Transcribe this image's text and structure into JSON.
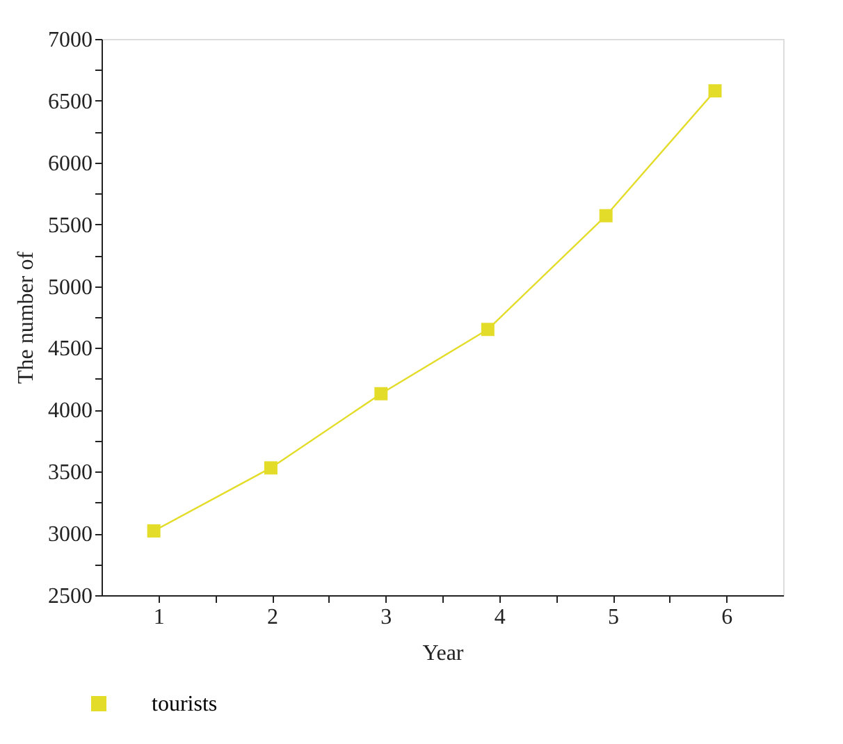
{
  "chart_data": {
    "type": "line",
    "xlabel": "Year",
    "ylabel": "The number of",
    "x": [
      0.96,
      1.99,
      2.96,
      3.9,
      4.94,
      5.9
    ],
    "series": [
      {
        "name": "tourists",
        "color": "#e3dc28",
        "values": [
          3020,
          3530,
          4130,
          4650,
          5570,
          6580
        ]
      }
    ],
    "xlim": [
      0.5,
      6.5
    ],
    "xticks": [
      1,
      {
        "value": 1.5,
        "label": null
      },
      2,
      {
        "value": 2.5,
        "label": null
      },
      3,
      {
        "value": 3.5,
        "label": null
      },
      4,
      {
        "value": 4.5,
        "label": null
      },
      5,
      {
        "value": 5.5,
        "label": null
      },
      6
    ],
    "ylim": [
      2500,
      7000
    ],
    "yticks": [
      2500,
      {
        "value": 2750,
        "label": null
      },
      3000,
      {
        "value": 3250,
        "label": null
      },
      3500,
      {
        "value": 3750,
        "label": null
      },
      4000,
      {
        "value": 4250,
        "label": null
      },
      4500,
      {
        "value": 4750,
        "label": null
      },
      5000,
      {
        "value": 5250,
        "label": null
      },
      5500,
      {
        "value": 5750,
        "label": null
      },
      6000,
      {
        "value": 6250,
        "label": null
      },
      6500,
      {
        "value": 6750,
        "label": null
      },
      7000
    ],
    "marker": "square",
    "line_style": "solid",
    "legend": "bottom left",
    "grid": false
  }
}
